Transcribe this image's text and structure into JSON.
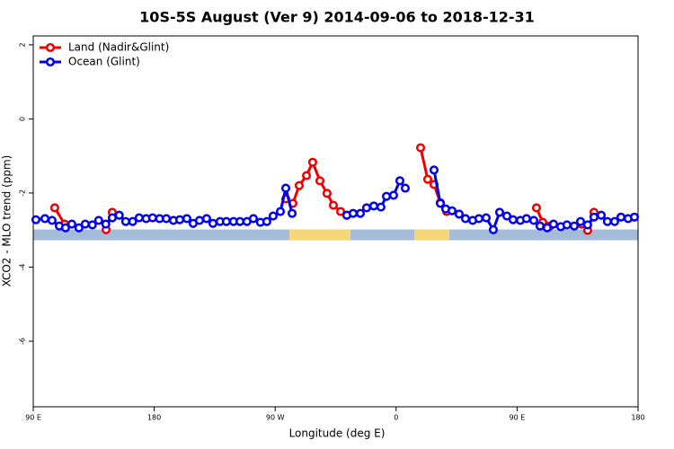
{
  "chart_data": {
    "type": "line",
    "title": "10S-5S August (Ver 9)   2014-09-06 to 2018-12-31",
    "x_label": "Longitude (deg E)",
    "y_label": "XCO2 - MLO trend (ppm)",
    "xlim": [
      90,
      540
    ],
    "ylim": [
      -7.77,
      2.24
    ],
    "xticks": [
      {
        "value": 90,
        "label": "90 E"
      },
      {
        "value": 180,
        "label": "180"
      },
      {
        "value": 270,
        "label": "90 W"
      },
      {
        "value": 360,
        "label": "0"
      },
      {
        "value": 450,
        "label": "90 E"
      },
      {
        "value": 540,
        "label": "180"
      }
    ],
    "yticks": [
      2,
      0,
      -2,
      -4,
      -6
    ],
    "legend": "top-left",
    "band": {
      "y": -3.13,
      "color": "#a5bcd8",
      "land_color": "#f5d77a",
      "land": [
        [
          280.6,
          326
        ],
        [
          373.5,
          399.6
        ]
      ]
    },
    "series": [
      {
        "name": "Land (Nadir&Glint)",
        "color": "#ee0000",
        "x": [
          106,
          113.4,
          null,
          144.2,
          148.8,
          null,
          277.9,
          283.2,
          287.9,
          293.3,
          297.9,
          303.3,
          308.6,
          313.3,
          318.7,
          323.3,
          null,
          378.2,
          383.5,
          388.2,
          392.9,
          397.6,
          null,
          464.4,
          469.1,
          474.4,
          null,
          497.9,
          502.5,
          507.2
        ],
        "values": [
          -2.4,
          -2.84,
          null,
          -2.99,
          -2.52,
          null,
          -2.16,
          -2.28,
          -1.8,
          -1.53,
          -1.17,
          -1.67,
          -2.01,
          -2.33,
          -2.5,
          -2.6,
          null,
          -0.78,
          -1.63,
          -1.77,
          -2.26,
          -2.5,
          null,
          -2.4,
          -2.79,
          -2.89,
          null,
          -2.84,
          -3.01,
          -2.52
        ]
      },
      {
        "name": "Ocean (Glint)",
        "color": "#0000ee",
        "x": [
          92,
          98.7,
          104,
          109.4,
          114,
          118.7,
          124,
          128.7,
          134,
          138.7,
          144,
          148.8,
          154,
          158.8,
          164,
          168.8,
          174,
          178.8,
          184,
          189,
          194.3,
          199,
          204.3,
          209,
          213.7,
          219,
          223.7,
          229,
          233.7,
          239,
          243.8,
          249,
          253.8,
          259,
          263.8,
          268.5,
          273.9,
          277.9,
          282.6,
          null,
          323.3,
          328,
          333.4,
          338,
          343.4,
          348.7,
          352.8,
          358.1,
          362.8,
          366.8,
          null,
          388.2,
          392.9,
          396.9,
          401.6,
          406.9,
          411.6,
          417,
          421.6,
          427,
          432.3,
          437,
          442.4,
          447,
          452.4,
          457,
          462.4,
          467.1,
          472.4,
          477.1,
          482.5,
          487.1,
          492.5,
          497.2,
          502.5,
          507.2,
          512.6,
          517.2,
          522.6,
          527.3,
          532.6,
          537.3
        ],
        "values": [
          -2.72,
          -2.69,
          -2.74,
          -2.89,
          -2.94,
          -2.84,
          -2.94,
          -2.84,
          -2.86,
          -2.74,
          -2.84,
          -2.67,
          -2.6,
          -2.77,
          -2.77,
          -2.67,
          -2.69,
          -2.67,
          -2.69,
          -2.69,
          -2.74,
          -2.72,
          -2.69,
          -2.82,
          -2.74,
          -2.69,
          -2.82,
          -2.77,
          -2.77,
          -2.77,
          -2.77,
          -2.77,
          -2.69,
          -2.79,
          -2.77,
          -2.62,
          -2.5,
          -1.87,
          -2.55,
          null,
          -2.6,
          -2.55,
          -2.55,
          -2.4,
          -2.35,
          -2.38,
          -2.09,
          -2.06,
          -1.67,
          -1.87,
          null,
          -1.38,
          -2.28,
          -2.43,
          -2.48,
          -2.57,
          -2.69,
          -2.74,
          -2.69,
          -2.67,
          -2.99,
          -2.52,
          -2.62,
          -2.72,
          -2.74,
          -2.69,
          -2.74,
          -2.89,
          -2.94,
          -2.84,
          -2.91,
          -2.86,
          -2.89,
          -2.77,
          -2.86,
          -2.65,
          -2.6,
          -2.77,
          -2.77,
          -2.65,
          -2.69,
          -2.65
        ]
      }
    ]
  }
}
